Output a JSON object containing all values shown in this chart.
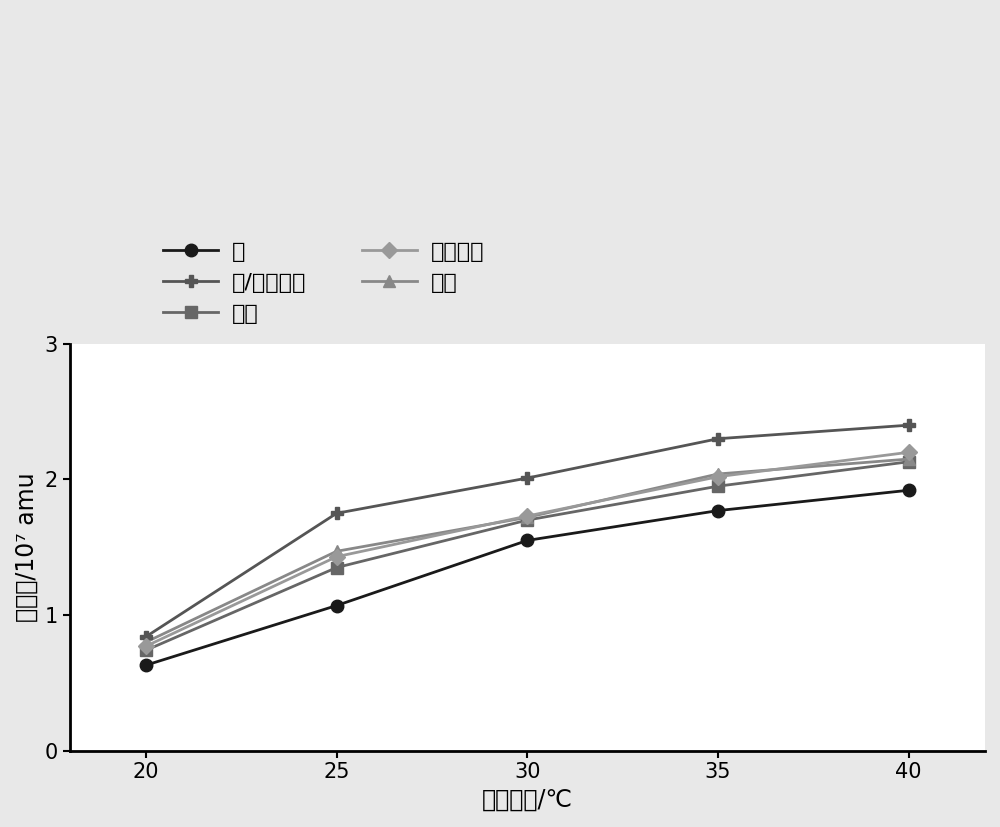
{
  "x": [
    20,
    25,
    30,
    35,
    40
  ],
  "series": [
    {
      "label": "苯",
      "values": [
        0.63,
        1.07,
        1.55,
        1.77,
        1.92
      ],
      "color": "#1a1a1a",
      "marker": "o",
      "marker_size": 9,
      "linewidth": 2.0
    },
    {
      "label": "甲苯",
      "values": [
        0.74,
        1.35,
        1.7,
        1.95,
        2.13
      ],
      "color": "#666666",
      "marker": "s",
      "marker_size": 9,
      "linewidth": 2.0
    },
    {
      "label": "乙苯",
      "values": [
        0.8,
        1.47,
        1.72,
        2.04,
        2.15
      ],
      "color": "#888888",
      "marker": "^",
      "marker_size": 9,
      "linewidth": 2.0
    },
    {
      "label": "间/对二甲苯",
      "values": [
        0.84,
        1.75,
        2.01,
        2.3,
        2.4
      ],
      "color": "#555555",
      "marker": "P",
      "marker_size": 9,
      "linewidth": 2.0
    },
    {
      "label": "邻二甲苯",
      "values": [
        0.77,
        1.43,
        1.73,
        2.02,
        2.2
      ],
      "color": "#999999",
      "marker": "D",
      "marker_size": 8,
      "linewidth": 2.0
    }
  ],
  "xlabel": "吹扫温度/℃",
  "ylabel": "峰面积/10⁷ amu",
  "xlim": [
    18,
    42
  ],
  "ylim": [
    0,
    3.0
  ],
  "yticks": [
    0,
    1,
    2,
    3
  ],
  "xticks": [
    20,
    25,
    30,
    35,
    40
  ],
  "legend_order": [
    0,
    3,
    1,
    4,
    2
  ],
  "legend_cols": 2,
  "background_color": "#e8e8e8",
  "plot_bg_color": "#ffffff",
  "fontsize_axis_label": 17,
  "fontsize_tick": 15,
  "fontsize_legend": 16
}
